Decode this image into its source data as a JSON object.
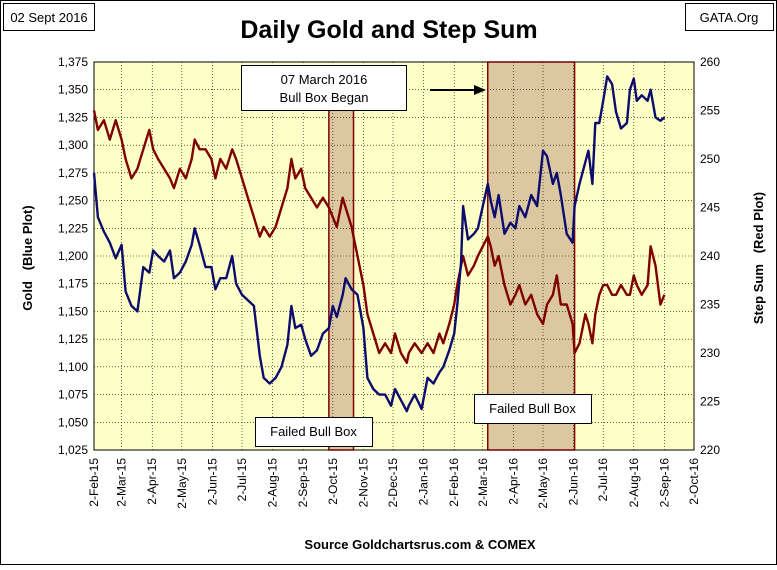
{
  "chart_data": {
    "type": "line",
    "title": "Daily Gold and Step Sum",
    "date_label": "02 Sept 2016",
    "source_label": "GATA.Org",
    "xlabel": "Source Goldchartsrus.com & COMEX",
    "ylabel_left": "Gold   (Blue Plot)",
    "ylabel_right": "Step Sum   (Red Plot)",
    "x_ticks": [
      "2-Feb-15",
      "2-Mar-15",
      "2-Apr-15",
      "2-May-15",
      "2-Jun-15",
      "2-Jul-15",
      "2-Aug-15",
      "2-Sep-15",
      "2-Oct-15",
      "2-Nov-15",
      "2-Dec-15",
      "2-Jan-16",
      "2-Feb-16",
      "2-Mar-16",
      "2-Apr-16",
      "2-May-16",
      "2-Jun-16",
      "2-Jul-16",
      "2-Aug-16",
      "2-Sep-16",
      "2-Oct-16"
    ],
    "y_left": {
      "min": 1025,
      "max": 1375,
      "step": 25,
      "ticks": [
        "1,025",
        "1,050",
        "1,075",
        "1,100",
        "1,125",
        "1,150",
        "1,175",
        "1,200",
        "1,225",
        "1,250",
        "1,275",
        "1,300",
        "1,325",
        "1,350",
        "1,375"
      ]
    },
    "y_right": {
      "min": 220,
      "max": 260,
      "step": 5,
      "ticks": [
        "220",
        "225",
        "230",
        "235",
        "240",
        "245",
        "250",
        "255",
        "260"
      ]
    },
    "grid": true,
    "colors": {
      "plot_bg": "#ffffc8",
      "gold": "#0c0c6e",
      "step_sum": "#800000",
      "box_fill": "#dcc8a0",
      "box_border": "#800000",
      "grid": "#000000"
    },
    "shaded_regions": [
      {
        "start": "2015-09-28",
        "end": "2015-10-23",
        "label": "Failed Bull Box"
      },
      {
        "start": "2016-03-07",
        "end": "2016-06-03",
        "label": "Failed Bull Box"
      }
    ],
    "annotation": {
      "line1": "07 March 2016",
      "line2": "Bull Box Began"
    },
    "series": [
      {
        "name": "Gold",
        "axis": "left",
        "points": [
          [
            "2015-02-02",
            1275
          ],
          [
            "2015-02-06",
            1235
          ],
          [
            "2015-02-12",
            1222
          ],
          [
            "2015-02-18",
            1212
          ],
          [
            "2015-02-24",
            1198
          ],
          [
            "2015-03-02",
            1210
          ],
          [
            "2015-03-06",
            1168
          ],
          [
            "2015-03-12",
            1155
          ],
          [
            "2015-03-18",
            1150
          ],
          [
            "2015-03-24",
            1190
          ],
          [
            "2015-03-30",
            1185
          ],
          [
            "2015-04-03",
            1205
          ],
          [
            "2015-04-08",
            1200
          ],
          [
            "2015-04-14",
            1195
          ],
          [
            "2015-04-20",
            1205
          ],
          [
            "2015-04-24",
            1180
          ],
          [
            "2015-04-30",
            1185
          ],
          [
            "2015-05-06",
            1195
          ],
          [
            "2015-05-12",
            1210
          ],
          [
            "2015-05-15",
            1225
          ],
          [
            "2015-05-20",
            1210
          ],
          [
            "2015-05-26",
            1190
          ],
          [
            "2015-06-01",
            1190
          ],
          [
            "2015-06-05",
            1170
          ],
          [
            "2015-06-10",
            1180
          ],
          [
            "2015-06-16",
            1180
          ],
          [
            "2015-06-22",
            1200
          ],
          [
            "2015-06-26",
            1175
          ],
          [
            "2015-07-02",
            1165
          ],
          [
            "2015-07-08",
            1160
          ],
          [
            "2015-07-14",
            1155
          ],
          [
            "2015-07-20",
            1110
          ],
          [
            "2015-07-24",
            1090
          ],
          [
            "2015-07-30",
            1085
          ],
          [
            "2015-08-05",
            1090
          ],
          [
            "2015-08-11",
            1100
          ],
          [
            "2015-08-17",
            1120
          ],
          [
            "2015-08-21",
            1155
          ],
          [
            "2015-08-25",
            1135
          ],
          [
            "2015-08-31",
            1138
          ],
          [
            "2015-09-04",
            1125
          ],
          [
            "2015-09-10",
            1110
          ],
          [
            "2015-09-16",
            1115
          ],
          [
            "2015-09-22",
            1130
          ],
          [
            "2015-09-28",
            1135
          ],
          [
            "2015-10-02",
            1155
          ],
          [
            "2015-10-06",
            1145
          ],
          [
            "2015-10-12",
            1165
          ],
          [
            "2015-10-15",
            1180
          ],
          [
            "2015-10-21",
            1170
          ],
          [
            "2015-10-27",
            1165
          ],
          [
            "2015-11-02",
            1135
          ],
          [
            "2015-11-06",
            1090
          ],
          [
            "2015-11-12",
            1080
          ],
          [
            "2015-11-18",
            1075
          ],
          [
            "2015-11-24",
            1075
          ],
          [
            "2015-11-30",
            1065
          ],
          [
            "2015-12-04",
            1080
          ],
          [
            "2015-12-10",
            1070
          ],
          [
            "2015-12-16",
            1060
          ],
          [
            "2015-12-18",
            1065
          ],
          [
            "2015-12-24",
            1075
          ],
          [
            "2015-12-31",
            1062
          ],
          [
            "2016-01-06",
            1090
          ],
          [
            "2016-01-12",
            1085
          ],
          [
            "2016-01-18",
            1095
          ],
          [
            "2016-01-22",
            1100
          ],
          [
            "2016-01-28",
            1115
          ],
          [
            "2016-02-02",
            1130
          ],
          [
            "2016-02-05",
            1155
          ],
          [
            "2016-02-09",
            1195
          ],
          [
            "2016-02-11",
            1245
          ],
          [
            "2016-02-16",
            1215
          ],
          [
            "2016-02-22",
            1220
          ],
          [
            "2016-02-26",
            1225
          ],
          [
            "2016-03-02",
            1245
          ],
          [
            "2016-03-07",
            1265
          ],
          [
            "2016-03-10",
            1250
          ],
          [
            "2016-03-14",
            1235
          ],
          [
            "2016-03-18",
            1255
          ],
          [
            "2016-03-24",
            1220
          ],
          [
            "2016-03-30",
            1230
          ],
          [
            "2016-04-04",
            1225
          ],
          [
            "2016-04-08",
            1245
          ],
          [
            "2016-04-14",
            1235
          ],
          [
            "2016-04-20",
            1255
          ],
          [
            "2016-04-26",
            1245
          ],
          [
            "2016-05-02",
            1295
          ],
          [
            "2016-05-06",
            1290
          ],
          [
            "2016-05-12",
            1265
          ],
          [
            "2016-05-16",
            1275
          ],
          [
            "2016-05-20",
            1255
          ],
          [
            "2016-05-26",
            1220
          ],
          [
            "2016-06-01",
            1212
          ],
          [
            "2016-06-03",
            1245
          ],
          [
            "2016-06-08",
            1265
          ],
          [
            "2016-06-14",
            1285
          ],
          [
            "2016-06-17",
            1295
          ],
          [
            "2016-06-21",
            1265
          ],
          [
            "2016-06-24",
            1320
          ],
          [
            "2016-06-28",
            1320
          ],
          [
            "2016-07-02",
            1340
          ],
          [
            "2016-07-06",
            1362
          ],
          [
            "2016-07-11",
            1355
          ],
          [
            "2016-07-15",
            1330
          ],
          [
            "2016-07-20",
            1315
          ],
          [
            "2016-07-26",
            1320
          ],
          [
            "2016-07-29",
            1350
          ],
          [
            "2016-08-02",
            1360
          ],
          [
            "2016-08-05",
            1340
          ],
          [
            "2016-08-10",
            1345
          ],
          [
            "2016-08-16",
            1340
          ],
          [
            "2016-08-19",
            1350
          ],
          [
            "2016-08-24",
            1325
          ],
          [
            "2016-08-29",
            1322
          ],
          [
            "2016-09-02",
            1325
          ]
        ]
      },
      {
        "name": "Step Sum",
        "axis": "right",
        "points": [
          [
            "2015-02-02",
            255
          ],
          [
            "2015-02-06",
            253
          ],
          [
            "2015-02-12",
            254
          ],
          [
            "2015-02-18",
            252
          ],
          [
            "2015-02-24",
            254
          ],
          [
            "2015-03-02",
            252
          ],
          [
            "2015-03-06",
            250
          ],
          [
            "2015-03-12",
            248
          ],
          [
            "2015-03-18",
            249
          ],
          [
            "2015-03-24",
            251
          ],
          [
            "2015-03-30",
            253
          ],
          [
            "2015-04-03",
            251
          ],
          [
            "2015-04-08",
            250
          ],
          [
            "2015-04-14",
            249
          ],
          [
            "2015-04-20",
            248
          ],
          [
            "2015-04-24",
            247
          ],
          [
            "2015-04-30",
            249
          ],
          [
            "2015-05-06",
            248
          ],
          [
            "2015-05-12",
            250
          ],
          [
            "2015-05-15",
            252
          ],
          [
            "2015-05-20",
            251
          ],
          [
            "2015-05-26",
            251
          ],
          [
            "2015-06-01",
            250
          ],
          [
            "2015-06-05",
            248
          ],
          [
            "2015-06-10",
            250
          ],
          [
            "2015-06-16",
            249
          ],
          [
            "2015-06-22",
            251
          ],
          [
            "2015-06-26",
            250
          ],
          [
            "2015-07-02",
            248
          ],
          [
            "2015-07-08",
            246
          ],
          [
            "2015-07-14",
            244
          ],
          [
            "2015-07-20",
            242
          ],
          [
            "2015-07-24",
            243
          ],
          [
            "2015-07-30",
            242
          ],
          [
            "2015-08-05",
            243
          ],
          [
            "2015-08-11",
            245
          ],
          [
            "2015-08-17",
            247
          ],
          [
            "2015-08-21",
            250
          ],
          [
            "2015-08-25",
            248
          ],
          [
            "2015-08-31",
            249
          ],
          [
            "2015-09-04",
            247
          ],
          [
            "2015-09-10",
            246
          ],
          [
            "2015-09-16",
            245
          ],
          [
            "2015-09-22",
            246
          ],
          [
            "2015-09-28",
            245
          ],
          [
            "2015-10-02",
            244
          ],
          [
            "2015-10-06",
            243
          ],
          [
            "2015-10-12",
            246
          ],
          [
            "2015-10-15",
            245
          ],
          [
            "2015-10-21",
            243
          ],
          [
            "2015-10-27",
            240
          ],
          [
            "2015-11-02",
            237
          ],
          [
            "2015-11-06",
            234
          ],
          [
            "2015-11-12",
            232
          ],
          [
            "2015-11-18",
            230
          ],
          [
            "2015-11-24",
            231
          ],
          [
            "2015-11-30",
            230
          ],
          [
            "2015-12-04",
            232
          ],
          [
            "2015-12-10",
            230
          ],
          [
            "2015-12-16",
            229
          ],
          [
            "2015-12-18",
            230
          ],
          [
            "2015-12-24",
            231
          ],
          [
            "2015-12-31",
            230
          ],
          [
            "2016-01-06",
            231
          ],
          [
            "2016-01-12",
            230
          ],
          [
            "2016-01-18",
            232
          ],
          [
            "2016-01-22",
            231
          ],
          [
            "2016-01-28",
            233
          ],
          [
            "2016-02-02",
            235
          ],
          [
            "2016-02-05",
            237
          ],
          [
            "2016-02-09",
            239
          ],
          [
            "2016-02-11",
            240
          ],
          [
            "2016-02-16",
            238
          ],
          [
            "2016-02-22",
            239
          ],
          [
            "2016-02-26",
            240
          ],
          [
            "2016-03-02",
            241
          ],
          [
            "2016-03-07",
            242
          ],
          [
            "2016-03-10",
            241
          ],
          [
            "2016-03-14",
            239
          ],
          [
            "2016-03-18",
            240
          ],
          [
            "2016-03-24",
            237
          ],
          [
            "2016-03-30",
            235
          ],
          [
            "2016-04-04",
            236
          ],
          [
            "2016-04-08",
            237
          ],
          [
            "2016-04-14",
            235
          ],
          [
            "2016-04-20",
            236
          ],
          [
            "2016-04-26",
            234
          ],
          [
            "2016-05-02",
            233
          ],
          [
            "2016-05-06",
            235
          ],
          [
            "2016-05-12",
            236
          ],
          [
            "2016-05-16",
            238
          ],
          [
            "2016-05-20",
            235
          ],
          [
            "2016-05-26",
            235
          ],
          [
            "2016-06-01",
            233
          ],
          [
            "2016-06-03",
            230
          ],
          [
            "2016-06-08",
            231
          ],
          [
            "2016-06-14",
            234
          ],
          [
            "2016-06-17",
            233
          ],
          [
            "2016-06-21",
            231
          ],
          [
            "2016-06-24",
            234
          ],
          [
            "2016-06-28",
            236
          ],
          [
            "2016-07-02",
            237
          ],
          [
            "2016-07-06",
            237
          ],
          [
            "2016-07-11",
            236
          ],
          [
            "2016-07-15",
            236
          ],
          [
            "2016-07-20",
            237
          ],
          [
            "2016-07-26",
            236
          ],
          [
            "2016-07-29",
            236
          ],
          [
            "2016-08-02",
            238
          ],
          [
            "2016-08-05",
            237
          ],
          [
            "2016-08-10",
            236
          ],
          [
            "2016-08-16",
            237
          ],
          [
            "2016-08-19",
            241
          ],
          [
            "2016-08-24",
            239
          ],
          [
            "2016-08-29",
            235
          ],
          [
            "2016-09-02",
            236
          ]
        ]
      }
    ]
  }
}
